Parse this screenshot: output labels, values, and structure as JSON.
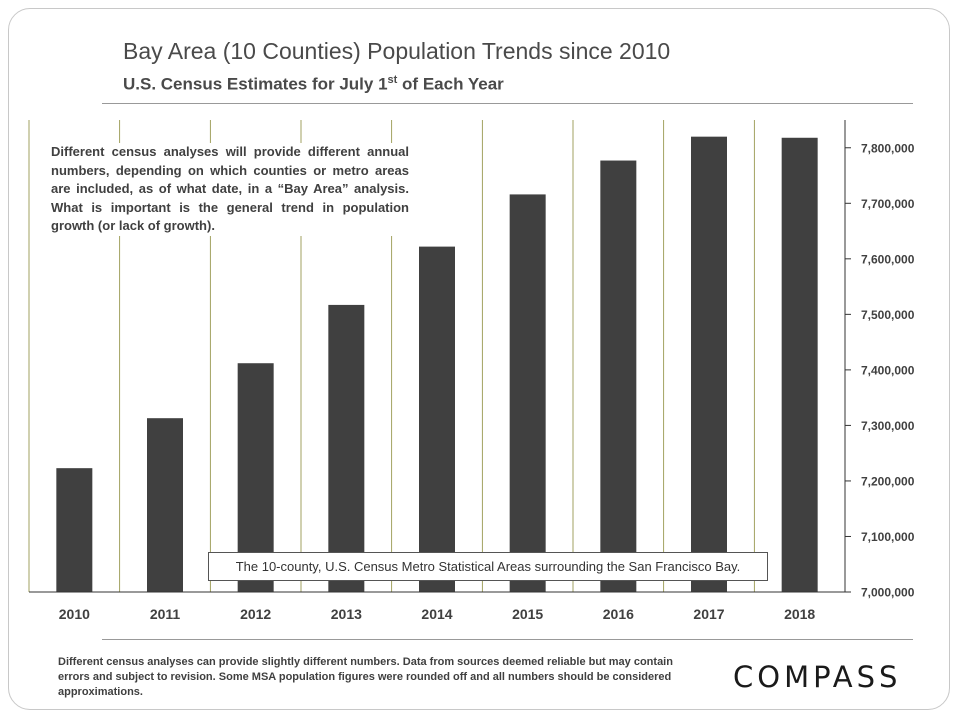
{
  "header": {
    "title": "Bay Area (10 Counties) Population Trends since 2010",
    "subtitle_main": "U.S. Census Estimates for July 1",
    "subtitle_sup": "st",
    "subtitle_end": " of Each Year"
  },
  "note": "Different census analyses will provide different annual numbers, depending on which counties or metro areas are included, as of what date, in a “Bay Area” analysis. What is important is the general trend in population growth (or lack of growth).",
  "source_label": "The 10-county, U.S. Census Metro Statistical Areas surrounding the San Francisco Bay.",
  "footnote": "Different census analyses can provide slightly different numbers. Data from sources deemed reliable but may contain errors and subject to revision. Some MSA population figures were rounded off and all numbers should be considered approximations.",
  "brand": "COMPASS",
  "colors": {
    "bar": "#404040",
    "grid": "#8b8b3a",
    "axis": "#333333",
    "text": "#404040"
  },
  "chart_data": {
    "type": "bar",
    "title": "Bay Area (10 Counties) Population Trends since 2010",
    "xlabel": "",
    "ylabel": "",
    "categories": [
      "2010",
      "2011",
      "2012",
      "2013",
      "2014",
      "2015",
      "2016",
      "2017",
      "2018"
    ],
    "values": [
      7223000,
      7313000,
      7412000,
      7517000,
      7622000,
      7716000,
      7777000,
      7820000,
      7818000
    ],
    "ylim": [
      7000000,
      7850000
    ],
    "yticks": [
      7000000,
      7100000,
      7200000,
      7300000,
      7400000,
      7500000,
      7600000,
      7700000,
      7800000
    ],
    "ytick_labels": [
      "7,000,000",
      "7,100,000",
      "7,200,000",
      "7,300,000",
      "7,400,000",
      "7,500,000",
      "7,600,000",
      "7,700,000",
      "7,800,000"
    ],
    "grid": "vertical",
    "y_axis_side": "right"
  }
}
